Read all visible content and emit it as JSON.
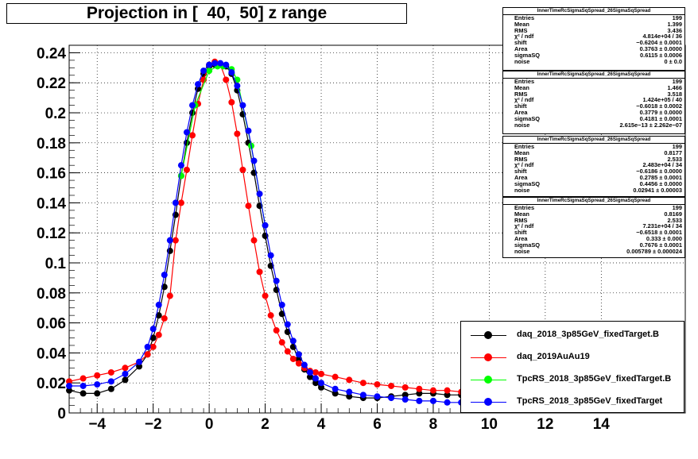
{
  "title": "Projection in [  40,  50] z range",
  "colors": {
    "series0": "#000000",
    "series1": "#ff0000",
    "series2": "#00ff00",
    "series3": "#0000ff"
  },
  "stats": [
    {
      "name": "InnerTimeRcSigmaSqSpread_26SigmaSqSpread",
      "rows": [
        [
          "Entries",
          "199"
        ],
        [
          "Mean",
          "1.399"
        ],
        [
          "RMS",
          "3.436"
        ],
        [
          "χ² / ndf",
          "4.814e+04 / 36"
        ],
        [
          "shift",
          "−0.6204 ± 0.0001"
        ],
        [
          "Area",
          "0.3763 ± 0.0000"
        ],
        [
          "sigmaSQ",
          "0.6115 ± 0.0006"
        ],
        [
          "noise",
          "0 ± 0.0"
        ]
      ]
    },
    {
      "name": "InnerTimeRcSigmaSqSpread_26SigmaSqSpread",
      "rows": [
        [
          "Entries",
          "199"
        ],
        [
          "Mean",
          "1.466"
        ],
        [
          "RMS",
          "3.518"
        ],
        [
          "χ² / ndf",
          "1.424e+05 / 40"
        ],
        [
          "shift",
          "−0.6018 ± 0.0002"
        ],
        [
          "Area",
          "0.3779 ± 0.0000"
        ],
        [
          "sigmaSQ",
          "0.4181 ± 0.0001"
        ],
        [
          "noise",
          "2.615e−13 ± 2.262e−07"
        ]
      ]
    },
    {
      "name": "InnerTimeRcSigmaSqSpread_26SigmaSqSpread",
      "rows": [
        [
          "Entries",
          "199"
        ],
        [
          "Mean",
          "0.8177"
        ],
        [
          "RMS",
          "2.533"
        ],
        [
          "χ² / ndf",
          "2.483e+04 / 34"
        ],
        [
          "shift",
          "−0.6186 ± 0.0000"
        ],
        [
          "Area",
          "0.2785 ± 0.0001"
        ],
        [
          "sigmaSQ",
          "0.4456 ± 0.0000"
        ],
        [
          "noise",
          "0.02941 ± 0.00003"
        ]
      ]
    },
    {
      "name": "InnerTimeRcSigmaSqSpread_26SigmaSqSpread",
      "rows": [
        [
          "Entries",
          "199"
        ],
        [
          "Mean",
          "0.8169"
        ],
        [
          "RMS",
          "2.533"
        ],
        [
          "χ² / ndf",
          "7.231e+04 / 34"
        ],
        [
          "shift",
          "−0.6518 ± 0.0001"
        ],
        [
          "Area",
          "0.333 ± 0.000"
        ],
        [
          "sigmaSQ",
          "0.7676 ± 0.0001"
        ],
        [
          "noise",
          "0.005789 ± 0.000024"
        ]
      ]
    }
  ],
  "legend": [
    {
      "label": "daq_2018_3p85GeV_fixedTarget.B",
      "color": "#000000"
    },
    {
      "label": "daq_2019AuAu19",
      "color": "#ff0000"
    },
    {
      "label": "TpcRS_2018_3p85GeV_fixedTarget.B",
      "color": "#00ff00"
    },
    {
      "label": "TpcRS_2018_3p85GeV_fixedTarget",
      "color": "#0000ff"
    }
  ],
  "chart_data": {
    "type": "scatter",
    "title": "Projection in [  40,  50] z range",
    "xlim": [
      -5,
      17
    ],
    "ylim": [
      0,
      0.245
    ],
    "x_ticks": [
      -4,
      -2,
      0,
      2,
      4,
      6,
      8,
      10,
      12,
      14
    ],
    "x_tick_labels": [
      "−4",
      "−2",
      "0",
      "2",
      "4",
      "6",
      "8",
      "10",
      "12",
      "14"
    ],
    "y_ticks": [
      0,
      0.02,
      0.04,
      0.06,
      0.08,
      0.1,
      0.12,
      0.14,
      0.16,
      0.18,
      0.2,
      0.22,
      0.24
    ],
    "y_tick_labels": [
      "0",
      "0.02",
      "0.04",
      "0.06",
      "0.08",
      "0.1",
      "0.12",
      "0.14",
      "0.16",
      "0.18",
      "0.2",
      "0.22",
      "0.24"
    ],
    "grid": true,
    "series": [
      {
        "name": "daq_2018_3p85GeV_fixedTarget.B",
        "color": "#000000",
        "x": [
          -5,
          -4.5,
          -4,
          -3.5,
          -3,
          -2.5,
          -2.2,
          -2,
          -1.8,
          -1.6,
          -1.4,
          -1.2,
          -1,
          -0.8,
          -0.6,
          -0.4,
          -0.2,
          0,
          0.2,
          0.4,
          0.6,
          0.8,
          1,
          1.2,
          1.4,
          1.6,
          1.8,
          2,
          2.2,
          2.4,
          2.6,
          2.8,
          3,
          3.2,
          3.4,
          3.6,
          3.8,
          4,
          4.5,
          5,
          5.5,
          6,
          6.5,
          7,
          7.5,
          8,
          8.5,
          9,
          9.5
        ],
        "y": [
          0.015,
          0.013,
          0.013,
          0.016,
          0.022,
          0.031,
          0.039,
          0.05,
          0.065,
          0.084,
          0.108,
          0.132,
          0.158,
          0.18,
          0.2,
          0.216,
          0.226,
          0.231,
          0.232,
          0.232,
          0.231,
          0.226,
          0.215,
          0.199,
          0.18,
          0.16,
          0.138,
          0.118,
          0.098,
          0.082,
          0.066,
          0.054,
          0.044,
          0.036,
          0.029,
          0.024,
          0.02,
          0.017,
          0.013,
          0.011,
          0.01,
          0.01,
          0.011,
          0.012,
          0.013,
          0.013,
          0.012,
          0.012,
          0.011
        ]
      },
      {
        "name": "daq_2019AuAu19",
        "color": "#ff0000",
        "x": [
          -5,
          -4.5,
          -4,
          -3.5,
          -3,
          -2.5,
          -2.2,
          -2,
          -1.8,
          -1.6,
          -1.4,
          -1.2,
          -1,
          -0.8,
          -0.6,
          -0.4,
          -0.2,
          0,
          0.2,
          0.4,
          0.6,
          0.8,
          1,
          1.2,
          1.4,
          1.6,
          1.8,
          2,
          2.2,
          2.4,
          2.6,
          2.8,
          3,
          3.2,
          3.4,
          3.6,
          3.8,
          4,
          4.5,
          5,
          5.5,
          6,
          6.5,
          7,
          7.5,
          8,
          8.5,
          9,
          9.5
        ],
        "y": [
          0.021,
          0.023,
          0.025,
          0.027,
          0.03,
          0.034,
          0.039,
          0.044,
          0.052,
          0.063,
          0.078,
          0.115,
          0.14,
          0.162,
          0.185,
          0.206,
          0.222,
          0.232,
          0.234,
          0.232,
          0.222,
          0.207,
          0.186,
          0.162,
          0.138,
          0.115,
          0.094,
          0.078,
          0.065,
          0.055,
          0.047,
          0.041,
          0.036,
          0.033,
          0.03,
          0.028,
          0.027,
          0.026,
          0.024,
          0.022,
          0.02,
          0.019,
          0.018,
          0.017,
          0.016,
          0.015,
          0.015,
          0.014,
          0.014
        ]
      },
      {
        "name": "TpcRS_2018_3p85GeV_fixedTarget.B",
        "color": "#00ff00",
        "x": [
          -1,
          -0.5,
          0,
          0.3,
          0.5,
          0.8,
          1,
          1.5,
          2
        ],
        "y": [
          0.158,
          0.205,
          0.228,
          0.231,
          0.231,
          0.229,
          0.222,
          0.178,
          0.125
        ]
      },
      {
        "name": "TpcRS_2018_3p85GeV_fixedTarget",
        "color": "#0000ff",
        "x": [
          -5,
          -4.5,
          -4,
          -3.5,
          -3,
          -2.5,
          -2.2,
          -2,
          -1.8,
          -1.6,
          -1.4,
          -1.2,
          -1,
          -0.8,
          -0.6,
          -0.4,
          -0.2,
          0,
          0.2,
          0.4,
          0.6,
          0.8,
          1,
          1.2,
          1.4,
          1.6,
          1.8,
          2,
          2.2,
          2.4,
          2.6,
          2.8,
          3,
          3.2,
          3.4,
          3.6,
          3.8,
          4,
          4.5,
          5,
          5.5,
          6,
          6.5,
          7,
          7.5,
          8,
          8.5,
          9,
          9.5
        ],
        "y": [
          0.018,
          0.018,
          0.019,
          0.021,
          0.026,
          0.034,
          0.044,
          0.056,
          0.072,
          0.092,
          0.115,
          0.14,
          0.165,
          0.187,
          0.205,
          0.219,
          0.228,
          0.232,
          0.233,
          0.233,
          0.232,
          0.227,
          0.218,
          0.205,
          0.188,
          0.168,
          0.146,
          0.125,
          0.105,
          0.088,
          0.072,
          0.059,
          0.048,
          0.039,
          0.032,
          0.027,
          0.023,
          0.02,
          0.016,
          0.014,
          0.012,
          0.011,
          0.01,
          0.009,
          0.008,
          0.008,
          0.007,
          0.007,
          0.007
        ]
      }
    ]
  }
}
